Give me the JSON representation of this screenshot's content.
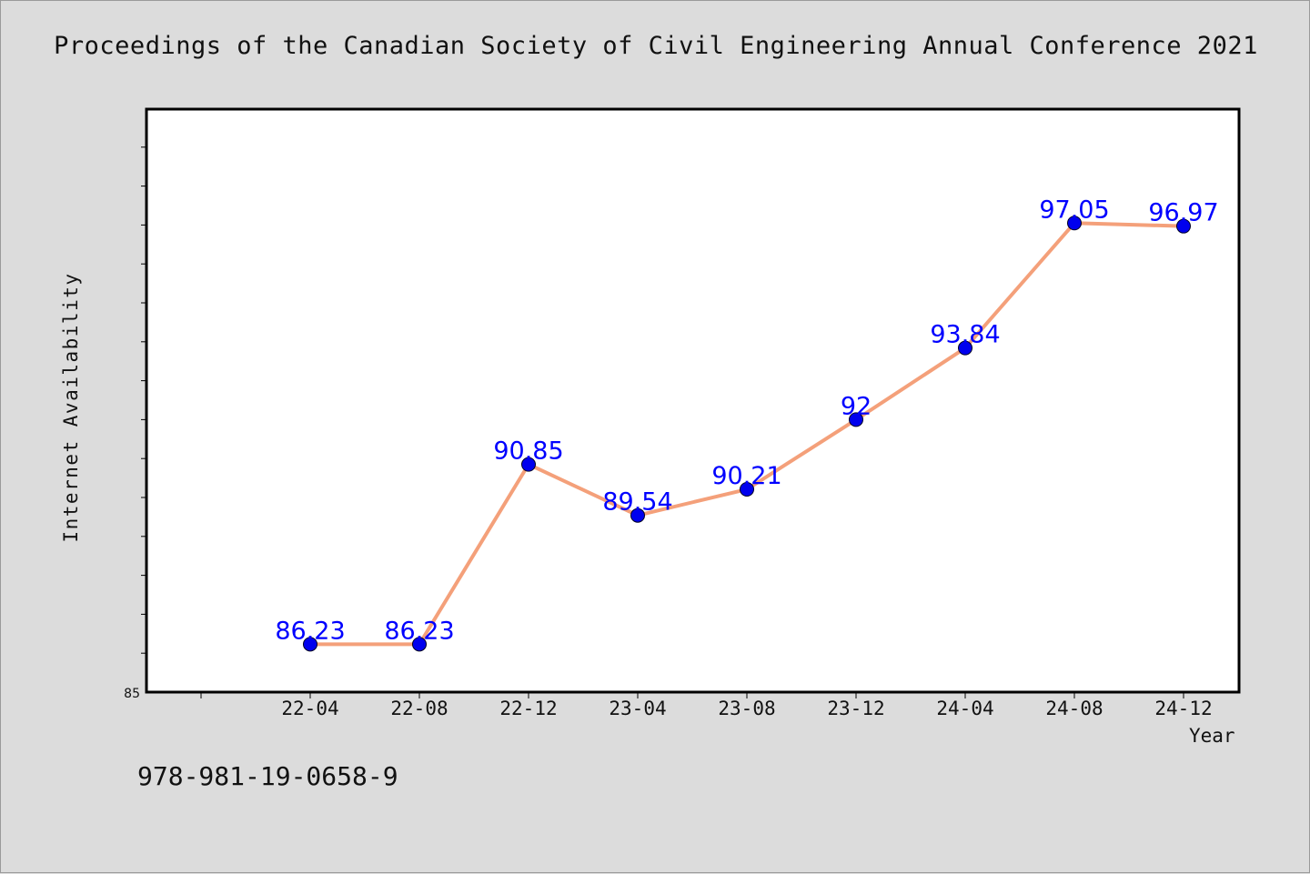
{
  "title": "Proceedings of the Canadian Society of Civil Engineering Annual Conference 2021",
  "footer_text": "978-981-19-0658-9",
  "colors": {
    "background": "#dcdcdc",
    "plot_background": "#ffffff",
    "line": "#f4a07a",
    "marker": "#0000ee",
    "data_label": "#0000ff"
  },
  "chart_data": {
    "type": "line",
    "title": "Proceedings of the Canadian Society of Civil Engineering Annual Conference 2021",
    "xlabel": "Year",
    "ylabel": "Internet Availability",
    "categories": [
      "22-04",
      "22-08",
      "22-12",
      "23-04",
      "23-08",
      "23-12",
      "24-04",
      "24-08",
      "24-12"
    ],
    "series": [
      {
        "values": [
          86.23,
          86.23,
          90.85,
          89.54,
          90.21,
          92,
          93.84,
          97.05,
          96.97
        ]
      }
    ],
    "data_labels": [
      "86.23",
      "86.23",
      "90.85",
      "89.54",
      "90.21",
      "92",
      "93.84",
      "97.05",
      "96.97"
    ],
    "ylim": [
      85,
      100
    ],
    "y_tick_labels": [
      "85"
    ],
    "grid": false,
    "legend": "none"
  }
}
